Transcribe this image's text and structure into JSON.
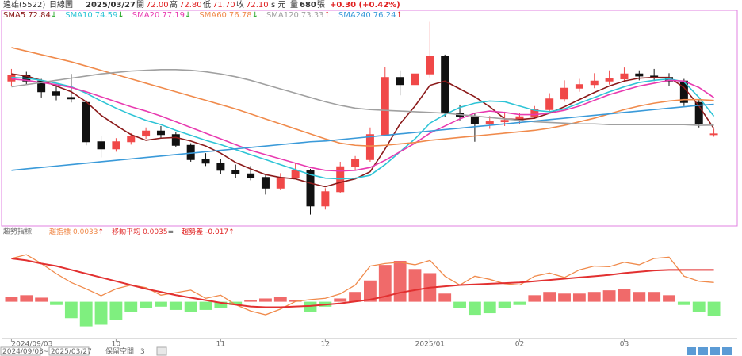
{
  "header": {
    "name": "遠雄(5522)",
    "period": "日線圖",
    "date": "2025/03/27",
    "open_label": "開",
    "open": "72.00",
    "high_label": "高",
    "high": "72.80",
    "low_label": "低",
    "low": "71.70",
    "close_label": "收",
    "close": "72.10",
    "close_unit": "s 元",
    "volume_label": "量",
    "volume": "680",
    "volume_unit": "張",
    "change": "+0.30 (+0.42%)"
  },
  "chart_data": {
    "type": "candlestick",
    "up_color": "#f04848",
    "down_color": "#111111",
    "ylim": [
      59.2,
      89.3
    ],
    "xticks": [
      {
        "value": 0,
        "label": "2024/09/03"
      },
      {
        "value": 7,
        "label": "10"
      },
      {
        "value": 14,
        "label": "11"
      },
      {
        "value": 21,
        "label": "12"
      },
      {
        "value": 28,
        "label": "2025/01"
      },
      {
        "value": 34,
        "label": "02"
      },
      {
        "value": 41,
        "label": "03"
      }
    ],
    "ohlc": [
      [
        79.5,
        81.2,
        78.8,
        80.3
      ],
      [
        80.3,
        80.8,
        79.0,
        79.5
      ],
      [
        79.5,
        79.8,
        77.2,
        78.0
      ],
      [
        78.0,
        78.9,
        76.8,
        77.5
      ],
      [
        77.2,
        80.5,
        76.5,
        77.0
      ],
      [
        76.5,
        76.8,
        70.5,
        71.0
      ],
      [
        71.0,
        71.8,
        68.8,
        70.0
      ],
      [
        70.0,
        71.5,
        69.6,
        71.0
      ],
      [
        71.0,
        72.2,
        70.6,
        71.8
      ],
      [
        71.8,
        73.0,
        71.4,
        72.5
      ],
      [
        72.5,
        73.2,
        71.5,
        72.0
      ],
      [
        72.0,
        72.4,
        70.2,
        70.5
      ],
      [
        70.5,
        70.8,
        68.2,
        68.5
      ],
      [
        68.5,
        69.4,
        67.6,
        68.0
      ],
      [
        68.0,
        68.6,
        66.5,
        67.0
      ],
      [
        67.0,
        67.8,
        65.9,
        66.5
      ],
      [
        66.5,
        67.6,
        65.6,
        66.0
      ],
      [
        66.0,
        66.3,
        63.6,
        64.5
      ],
      [
        64.5,
        66.6,
        64.2,
        66.0
      ],
      [
        66.0,
        68.0,
        65.8,
        67.0
      ],
      [
        67.0,
        67.2,
        60.8,
        62.0
      ],
      [
        62.0,
        64.5,
        61.5,
        64.0
      ],
      [
        64.0,
        68.2,
        63.8,
        67.5
      ],
      [
        67.5,
        69.0,
        67.0,
        68.5
      ],
      [
        68.5,
        73.0,
        68.2,
        72.0
      ],
      [
        72.0,
        81.5,
        71.8,
        80.0
      ],
      [
        80.0,
        81.0,
        77.5,
        79.0
      ],
      [
        79.0,
        83.5,
        78.5,
        80.5
      ],
      [
        80.5,
        87.8,
        80.0,
        83.0
      ],
      [
        83.0,
        83.2,
        74.5,
        75.0
      ],
      [
        75.0,
        76.2,
        74.0,
        74.5
      ],
      [
        74.5,
        75.0,
        71.0,
        73.5
      ],
      [
        73.5,
        74.6,
        72.8,
        73.8
      ],
      [
        73.8,
        75.2,
        73.2,
        74.0
      ],
      [
        74.0,
        75.0,
        73.5,
        74.5
      ],
      [
        74.5,
        76.0,
        74.2,
        75.5
      ],
      [
        75.5,
        77.8,
        75.0,
        77.0
      ],
      [
        77.0,
        79.6,
        76.6,
        78.5
      ],
      [
        78.5,
        79.8,
        78.0,
        79.0
      ],
      [
        79.0,
        80.6,
        78.5,
        79.5
      ],
      [
        79.5,
        81.0,
        79.0,
        79.8
      ],
      [
        79.8,
        81.4,
        79.4,
        80.5
      ],
      [
        80.5,
        81.0,
        79.6,
        80.2
      ],
      [
        80.2,
        81.2,
        79.5,
        80.0
      ],
      [
        80.0,
        80.6,
        78.8,
        79.5
      ],
      [
        79.5,
        79.8,
        76.0,
        76.5
      ],
      [
        76.5,
        76.9,
        73.0,
        73.5
      ],
      [
        72.0,
        72.8,
        71.7,
        72.1
      ]
    ],
    "series": [
      {
        "name": "SMA5",
        "color": "#8b1a1a",
        "trend": "↓",
        "values": [
          80.5,
          80.2,
          79.6,
          78.8,
          78.0,
          76.6,
          74.7,
          73.3,
          72.0,
          71.2,
          71.5,
          71.6,
          71.1,
          70.4,
          69.4,
          68.1,
          67.2,
          66.4,
          66.0,
          65.8,
          65.2,
          64.7,
          65.3,
          65.8,
          66.8,
          70.0,
          73.5,
          76.0,
          78.9,
          79.5,
          78.4,
          77.3,
          75.9,
          74.2,
          74.1,
          74.3,
          75.0,
          75.9,
          76.9,
          77.9,
          78.8,
          79.5,
          79.9,
          80.0,
          80.0,
          78.6,
          76.0,
          72.84
        ]
      },
      {
        "name": "SMA10",
        "color": "#2ec4d6",
        "trend": "↓",
        "values": [
          80.0,
          79.9,
          79.6,
          79.2,
          78.7,
          77.8,
          76.7,
          75.7,
          74.8,
          74.0,
          73.4,
          72.6,
          71.9,
          71.2,
          70.6,
          69.9,
          69.2,
          68.5,
          67.8,
          67.1,
          66.4,
          65.9,
          65.8,
          65.9,
          66.3,
          67.8,
          69.6,
          71.4,
          73.6,
          74.8,
          75.8,
          76.4,
          76.7,
          76.6,
          76.0,
          75.4,
          75.2,
          75.6,
          76.4,
          77.2,
          78.0,
          78.7,
          79.3,
          79.6,
          79.8,
          79.4,
          77.2,
          74.59
        ]
      },
      {
        "name": "SMA20",
        "color": "#e83ab0",
        "trend": "↓",
        "values": [
          79.8,
          79.6,
          79.3,
          79.0,
          78.6,
          78.0,
          77.3,
          76.6,
          75.9,
          75.3,
          74.6,
          73.8,
          73.0,
          72.2,
          71.4,
          70.6,
          69.8,
          69.2,
          68.6,
          68.0,
          67.4,
          67.0,
          66.9,
          67.0,
          67.4,
          68.4,
          69.6,
          70.8,
          72.2,
          73.2,
          74.2,
          75.0,
          75.3,
          75.1,
          74.8,
          74.8,
          75.0,
          75.4,
          76.0,
          76.8,
          77.6,
          78.2,
          78.8,
          79.2,
          79.6,
          79.5,
          78.6,
          77.19
        ]
      },
      {
        "name": "SMA60",
        "color": "#f08a4b",
        "trend": "↓",
        "values": [
          84.2,
          83.7,
          83.2,
          82.7,
          82.2,
          81.6,
          81.0,
          80.4,
          79.8,
          79.2,
          78.6,
          78.0,
          77.4,
          76.8,
          76.2,
          75.6,
          74.9,
          74.2,
          73.5,
          72.8,
          72.1,
          71.4,
          70.8,
          70.5,
          70.4,
          70.5,
          70.7,
          70.9,
          71.2,
          71.4,
          71.6,
          71.8,
          72.0,
          72.2,
          72.4,
          72.6,
          72.9,
          73.3,
          73.8,
          74.3,
          74.9,
          75.5,
          76.0,
          76.4,
          76.7,
          76.9,
          76.9,
          76.78
        ]
      },
      {
        "name": "SMA120",
        "color": "#a0a0a0",
        "trend": "↑",
        "values": [
          78.7,
          79.0,
          79.3,
          79.6,
          79.9,
          80.2,
          80.5,
          80.7,
          80.9,
          81.0,
          81.1,
          81.1,
          81.0,
          80.8,
          80.5,
          80.1,
          79.6,
          79.0,
          78.4,
          77.8,
          77.2,
          76.6,
          76.1,
          75.7,
          75.5,
          75.4,
          75.3,
          75.2,
          75.1,
          75.0,
          74.8,
          74.6,
          74.4,
          74.2,
          74.0,
          73.8,
          73.7,
          73.6,
          73.5,
          73.5,
          73.4,
          73.4,
          73.4,
          73.4,
          73.4,
          73.4,
          73.3,
          73.33
        ]
      },
      {
        "name": "SMA240",
        "color": "#3a9ad9",
        "trend": "↑",
        "values": [
          67.0,
          67.2,
          67.4,
          67.6,
          67.8,
          68.0,
          68.2,
          68.4,
          68.6,
          68.8,
          69.0,
          69.2,
          69.4,
          69.6,
          69.8,
          70.0,
          70.2,
          70.4,
          70.6,
          70.8,
          71.0,
          71.1,
          71.3,
          71.5,
          71.7,
          71.9,
          72.1,
          72.3,
          72.5,
          72.7,
          72.9,
          73.1,
          73.3,
          73.5,
          73.7,
          73.9,
          74.1,
          74.3,
          74.5,
          74.7,
          74.9,
          75.1,
          75.3,
          75.5,
          75.7,
          75.9,
          76.1,
          76.24
        ]
      }
    ],
    "indicator": {
      "title": "趨勢指標",
      "ylim": [
        -0.043,
        0.08
      ],
      "y2lim": [
        0.00244,
        0.00403
      ],
      "histogram": {
        "name": "趨勢差",
        "trend": "↑",
        "pos_color": "#f06a6a",
        "neg_color": "#7fef7f",
        "values": [
          0.006,
          0.008,
          0.005,
          -0.004,
          -0.02,
          -0.03,
          -0.028,
          -0.022,
          -0.012,
          -0.008,
          -0.006,
          -0.01,
          -0.012,
          -0.01,
          -0.008,
          -0.004,
          0.002,
          0.004,
          0.006,
          0.002,
          -0.012,
          -0.006,
          0.004,
          0.012,
          0.026,
          0.045,
          0.05,
          0.04,
          0.035,
          0.01,
          -0.008,
          -0.016,
          -0.014,
          -0.008,
          -0.004,
          0.008,
          0.012,
          0.01,
          0.01,
          0.012,
          0.014,
          0.016,
          0.012,
          0.012,
          0.008,
          -0.004,
          -0.012,
          -0.017
        ]
      },
      "lines": [
        {
          "name": "趨指標",
          "color": "#f08a4b",
          "trend": "↑",
          "axis": "y2",
          "values": [
            0.00368,
            0.00374,
            0.0036,
            0.00344,
            0.0033,
            0.0032,
            0.00309,
            0.0032,
            0.00326,
            0.00322,
            0.0031,
            0.00314,
            0.00318,
            0.00305,
            0.0031,
            0.00295,
            0.00285,
            0.00279,
            0.00288,
            0.003,
            0.00303,
            0.00305,
            0.00312,
            0.00326,
            0.00356,
            0.0036,
            0.00362,
            0.00358,
            0.00365,
            0.0034,
            0.00326,
            0.0034,
            0.00335,
            0.00328,
            0.00326,
            0.0034,
            0.00345,
            0.00338,
            0.0035,
            0.00356,
            0.00355,
            0.00362,
            0.00358,
            0.00368,
            0.0037,
            0.0034,
            0.00332,
            0.0033
          ]
        },
        {
          "name": "移動平均",
          "color": "#e23030",
          "trend": "=",
          "axis": "y2",
          "values": [
            0.00368,
            0.00365,
            0.0036,
            0.00356,
            0.0035,
            0.00344,
            0.00338,
            0.00332,
            0.00326,
            0.0032,
            0.00315,
            0.0031,
            0.00306,
            0.00302,
            0.00298,
            0.00295,
            0.00292,
            0.00291,
            0.00291,
            0.00292,
            0.00293,
            0.00295,
            0.00297,
            0.003,
            0.00303,
            0.00308,
            0.00314,
            0.00318,
            0.00322,
            0.00324,
            0.00326,
            0.00327,
            0.00328,
            0.00329,
            0.0033,
            0.00332,
            0.00334,
            0.00336,
            0.00338,
            0.0034,
            0.00342,
            0.00345,
            0.00347,
            0.00349,
            0.0035,
            0.0035,
            0.0035,
            0.0035
          ]
        }
      ]
    }
  },
  "footer": {
    "start": "2024/09/03",
    "sep": "~",
    "end": "2025/03/27",
    "reserve_label": "保留空間",
    "reserve": "3"
  }
}
